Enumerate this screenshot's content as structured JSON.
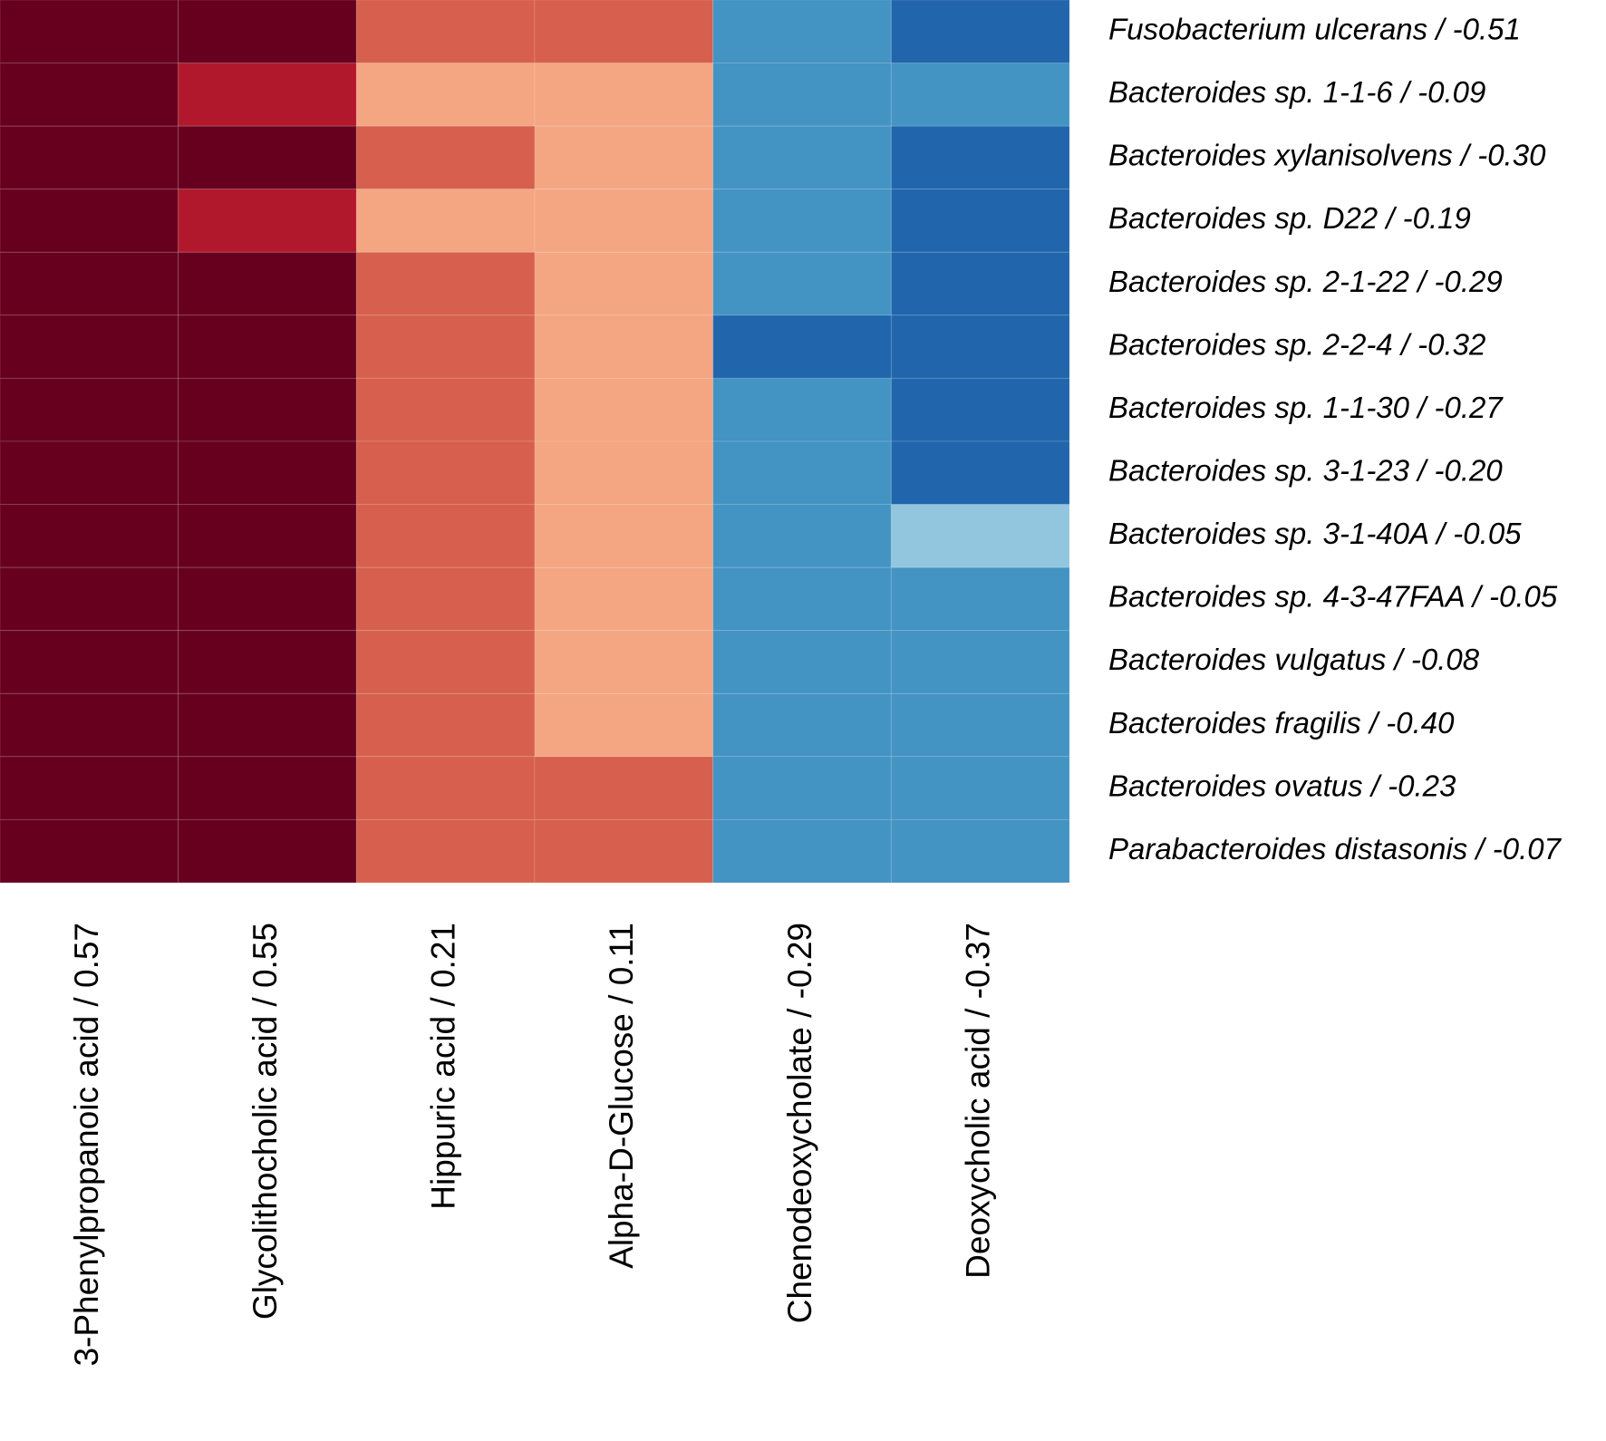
{
  "chart_data": {
    "type": "heatmap",
    "title": "",
    "rows": [
      "Fusobacterium ulcerans / -0.51",
      "Bacteroides sp. 1-1-6 / -0.09",
      "Bacteroides xylanisolvens / -0.30",
      "Bacteroides sp. D22 / -0.19",
      "Bacteroides sp. 2-1-22 / -0.29",
      "Bacteroides sp. 2-2-4 / -0.32",
      "Bacteroides sp. 1-1-30 / -0.27",
      "Bacteroides sp. 3-1-23 / -0.20",
      "Bacteroides sp. 3-1-40A / -0.05",
      "Bacteroides sp. 4-3-47FAA / -0.05",
      "Bacteroides vulgatus / -0.08",
      "Bacteroides fragilis / -0.40",
      "Bacteroides ovatus / -0.23",
      "Parabacteroides distasonis / -0.07"
    ],
    "columns": [
      "3-Phenylpropanoic acid / 0.57",
      "Glycolithocholic acid / 0.55",
      "Hippuric acid / 0.21",
      "Alpha-D-Glucose / 0.11",
      "Chenodeoxycholate / -0.29",
      "Deoxycholic acid / -0.37"
    ],
    "levels": [
      [
        4,
        4,
        2,
        2,
        -2,
        -3
      ],
      [
        4,
        3,
        1,
        1,
        -2,
        -2
      ],
      [
        4,
        4,
        2,
        1,
        -2,
        -3
      ],
      [
        4,
        3,
        1,
        1,
        -2,
        -3
      ],
      [
        4,
        4,
        2,
        1,
        -2,
        -3
      ],
      [
        4,
        4,
        2,
        1,
        -3,
        -3
      ],
      [
        4,
        4,
        2,
        1,
        -2,
        -3
      ],
      [
        4,
        4,
        2,
        1,
        -2,
        -3
      ],
      [
        4,
        4,
        2,
        1,
        -2,
        -1
      ],
      [
        4,
        4,
        2,
        1,
        -2,
        -2
      ],
      [
        4,
        4,
        2,
        1,
        -2,
        -2
      ],
      [
        4,
        4,
        2,
        1,
        -2,
        -2
      ],
      [
        4,
        4,
        2,
        2,
        -2,
        -2
      ],
      [
        4,
        4,
        2,
        2,
        -2,
        -2
      ]
    ],
    "level_colors": {
      "4": "#67001f",
      "3": "#b2182b",
      "2": "#d6604d",
      "1": "#f4a582",
      "-1": "#92c5de",
      "-2": "#4393c3",
      "-3": "#2166ac"
    }
  }
}
